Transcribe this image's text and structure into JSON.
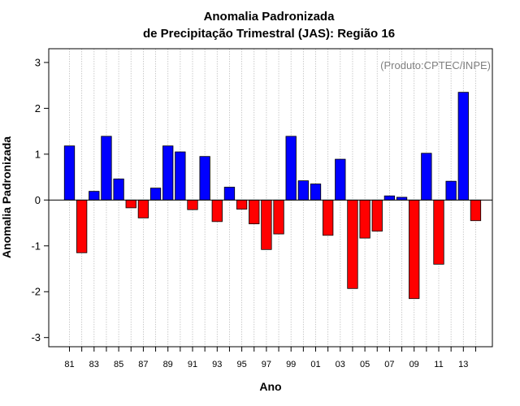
{
  "chart_data": {
    "type": "bar",
    "title": "Anomalia Padronizada",
    "subtitle": "de Precipitação Trimestral (JAS): Região 16",
    "annotation": "(Produto:CPTEC/INPE)",
    "xlabel": "Ano",
    "ylabel": "Anomalia Padronizada",
    "ylim": [
      -3.2,
      3.3
    ],
    "yticks": [
      -3,
      -2,
      -1,
      0,
      1,
      2,
      3
    ],
    "grid": "vertical-dotted",
    "categories": [
      "81",
      "82",
      "83",
      "84",
      "85",
      "86",
      "87",
      "88",
      "89",
      "90",
      "91",
      "92",
      "93",
      "94",
      "95",
      "96",
      "97",
      "98",
      "99",
      "00",
      "01",
      "02",
      "03",
      "04",
      "05",
      "06",
      "07",
      "08",
      "09",
      "10",
      "11",
      "12",
      "13",
      "14"
    ],
    "xtick_labels": [
      "81",
      "83",
      "85",
      "87",
      "89",
      "91",
      "93",
      "95",
      "97",
      "99",
      "01",
      "03",
      "05",
      "07",
      "09",
      "11",
      "13"
    ],
    "values": [
      1.18,
      -1.15,
      0.19,
      1.39,
      0.46,
      -0.17,
      -0.39,
      0.26,
      1.18,
      1.05,
      -0.21,
      0.95,
      -0.47,
      0.28,
      -0.2,
      -0.52,
      -1.08,
      -0.74,
      1.39,
      0.42,
      0.35,
      -0.77,
      0.89,
      -1.93,
      -0.83,
      -0.68,
      0.09,
      0.06,
      -2.15,
      1.02,
      -1.4,
      0.41,
      2.35,
      -0.45
    ],
    "colors": {
      "positive": "#0000ff",
      "negative": "#ff0000",
      "grid": "#bebebe",
      "annotation": "#7f7f7f"
    }
  }
}
